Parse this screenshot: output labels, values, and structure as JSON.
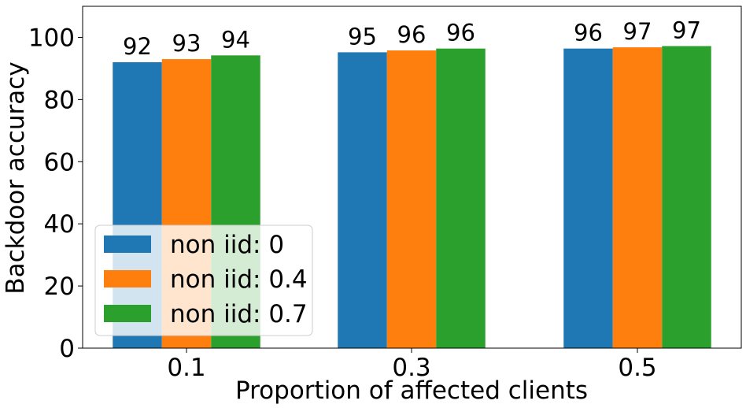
{
  "chart_data": {
    "type": "bar",
    "title": "",
    "xlabel": "Proportion of affected clients",
    "ylabel": "Backdoor accuracy",
    "categories": [
      "0.1",
      "0.3",
      "0.5"
    ],
    "ylim": [
      0,
      110
    ],
    "yticks": [
      0,
      20,
      40,
      60,
      80,
      100
    ],
    "grid": false,
    "legend_position": "lower-left",
    "series": [
      {
        "name": "non iid: 0",
        "color": "#1f77b4",
        "values": [
          92,
          95.2,
          96.4
        ],
        "labels": [
          "92",
          "95",
          "96"
        ]
      },
      {
        "name": "non iid: 0.4",
        "color": "#ff7f0e",
        "values": [
          93,
          95.8,
          96.8
        ],
        "labels": [
          "93",
          "96",
          "97"
        ]
      },
      {
        "name": "non iid: 0.7",
        "color": "#2ca02c",
        "values": [
          94.2,
          96.4,
          97.2
        ],
        "labels": [
          "94",
          "96",
          "97"
        ]
      }
    ]
  }
}
